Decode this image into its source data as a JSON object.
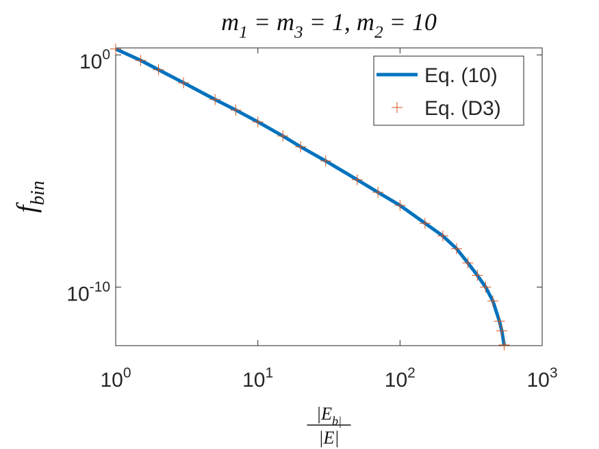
{
  "chart_data": {
    "type": "line",
    "title": "m_1 = m_3 = 1, m_2 = 10",
    "ylabel": "f_bin",
    "xlabel": [
      "|E_b|",
      "|E|"
    ],
    "x": [
      1,
      1.5,
      2,
      3,
      5,
      7,
      10,
      15,
      20,
      30,
      50,
      70,
      100,
      150,
      200,
      250,
      300,
      350,
      400,
      450,
      500,
      520,
      540
    ],
    "series": [
      {
        "name": "Eq. (10)",
        "color": "#0072bd",
        "style": "line",
        "values": [
          1.8,
          0.58,
          0.23,
          0.063,
          0.012,
          0.0042,
          0.0013,
          0.00032,
          0.00011,
          2.7e-05,
          4.2e-06,
          1.2e-06,
          3.3e-07,
          5.6e-08,
          1.6e-08,
          4.5e-09,
          1.1e-09,
          3.2e-10,
          1e-10,
          2.5e-11,
          3.4e-12,
          1.3e-12,
          3.2e-13
        ]
      },
      {
        "name": "Eq. (D3)",
        "color": "#d95319",
        "style": "plus",
        "values": [
          1.8,
          0.58,
          0.23,
          0.063,
          0.012,
          0.0042,
          0.0013,
          0.00032,
          0.00011,
          2.7e-05,
          4.2e-06,
          1.2e-06,
          3.3e-07,
          5.6e-08,
          1.6e-08,
          4.5e-09,
          1.1e-09,
          3.2e-10,
          1e-10,
          2.5e-11,
          3.4e-12,
          1.3e-12,
          3.2e-13
        ]
      }
    ],
    "xscale": "log",
    "yscale": "log",
    "xlim": [
      1,
      1000
    ],
    "ylim": [
      3e-13,
      2
    ],
    "xticks": [
      {
        "value": 1,
        "label": "10^0"
      },
      {
        "value": 10,
        "label": "10^1"
      },
      {
        "value": 100,
        "label": "10^2"
      },
      {
        "value": 1000,
        "label": "10^3"
      }
    ],
    "yticks": [
      {
        "value": 1e-10,
        "label": "10^-10"
      },
      {
        "value": 1,
        "label": "10^0"
      }
    ],
    "legend": "upper right"
  }
}
